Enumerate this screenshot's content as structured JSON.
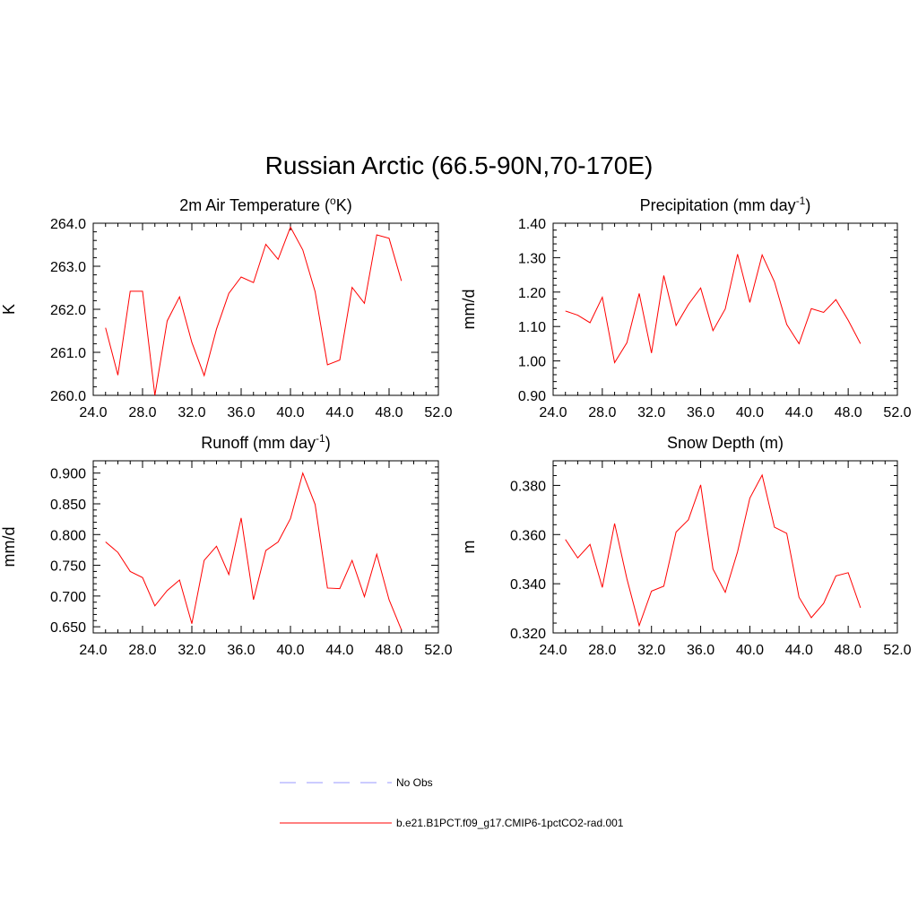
{
  "figure": {
    "title": "Russian Arctic (66.5-90N,70-170E)"
  },
  "colors": {
    "model": "#ff0000",
    "obs": "#9999ff"
  },
  "legend": [
    {
      "label": "No Obs",
      "style": "dashed",
      "color": "#9999ff"
    },
    {
      "label": "b.e21.B1PCT.f09_g17.CMIP6-1pctCO2-rad.001",
      "style": "solid",
      "color": "#ff0000"
    }
  ],
  "chart_data": [
    {
      "type": "line",
      "title": "2m Air Temperature (",
      "title_sup": "o",
      "title_suffix": "K)",
      "ylabel": "K",
      "xlabel": "",
      "xlim": [
        24,
        52
      ],
      "ylim": [
        260,
        264
      ],
      "xticks": [
        "24.0",
        "28.0",
        "32.0",
        "36.0",
        "40.0",
        "44.0",
        "48.0",
        "52.0"
      ],
      "yticks": [
        "260.0",
        "261.0",
        "262.0",
        "263.0",
        "264.0"
      ],
      "series": [
        {
          "x": [
            25,
            26,
            27,
            28,
            29,
            30,
            31,
            32,
            33,
            34,
            35,
            36,
            37,
            38,
            39,
            40,
            41,
            42,
            43,
            44,
            45,
            46,
            47,
            48,
            49
          ],
          "values": [
            261.57,
            260.47,
            262.42,
            262.42,
            260.0,
            261.73,
            262.29,
            261.23,
            260.46,
            261.54,
            262.37,
            262.75,
            262.62,
            263.51,
            263.16,
            263.91,
            263.38,
            262.41,
            260.71,
            260.82,
            262.51,
            262.14,
            263.73,
            263.65,
            262.66
          ]
        }
      ]
    },
    {
      "type": "line",
      "title": "Precipitation (mm day",
      "title_sup": "-1",
      "title_suffix": ")",
      "ylabel": "mm/d",
      "xlabel": "",
      "xlim": [
        24,
        52
      ],
      "ylim": [
        0.9,
        1.4
      ],
      "xticks": [
        "24.0",
        "28.0",
        "32.0",
        "36.0",
        "40.0",
        "44.0",
        "48.0",
        "52.0"
      ],
      "yticks": [
        "0.90",
        "1.00",
        "1.10",
        "1.20",
        "1.30",
        "1.40"
      ],
      "series": [
        {
          "x": [
            25,
            26,
            27,
            28,
            29,
            30,
            31,
            32,
            33,
            34,
            35,
            36,
            37,
            38,
            39,
            40,
            41,
            42,
            43,
            44,
            45,
            46,
            47,
            48,
            49
          ],
          "values": [
            1.145,
            1.133,
            1.111,
            1.185,
            0.995,
            1.053,
            1.196,
            1.023,
            1.248,
            1.103,
            1.164,
            1.212,
            1.088,
            1.151,
            1.31,
            1.17,
            1.308,
            1.23,
            1.106,
            1.05,
            1.152,
            1.141,
            1.178,
            1.118,
            1.05
          ]
        }
      ]
    },
    {
      "type": "line",
      "title": "Runoff (mm day",
      "title_sup": "-1",
      "title_suffix": ")",
      "ylabel": "mm/d",
      "xlabel": "",
      "xlim": [
        24,
        52
      ],
      "ylim": [
        0.64,
        0.92
      ],
      "xticks": [
        "24.0",
        "28.0",
        "32.0",
        "36.0",
        "40.0",
        "44.0",
        "48.0",
        "52.0"
      ],
      "yticks": [
        "0.650",
        "0.700",
        "0.750",
        "0.800",
        "0.850",
        "0.900"
      ],
      "series": [
        {
          "x": [
            25,
            26,
            27,
            28,
            29,
            30,
            31,
            32,
            33,
            34,
            35,
            36,
            37,
            38,
            39,
            40,
            41,
            42,
            43,
            44,
            45,
            46,
            47,
            48,
            49
          ],
          "values": [
            0.788,
            0.771,
            0.74,
            0.73,
            0.684,
            0.709,
            0.726,
            0.655,
            0.758,
            0.781,
            0.735,
            0.827,
            0.694,
            0.774,
            0.788,
            0.826,
            0.9,
            0.849,
            0.713,
            0.712,
            0.758,
            0.699,
            0.768,
            0.694,
            0.645
          ]
        }
      ]
    },
    {
      "type": "line",
      "title": "Snow Depth (m)",
      "title_sup": "",
      "title_suffix": "",
      "ylabel": "m",
      "xlabel": "",
      "xlim": [
        24,
        52
      ],
      "ylim": [
        0.32,
        0.39
      ],
      "xticks": [
        "24.0",
        "28.0",
        "32.0",
        "36.0",
        "40.0",
        "44.0",
        "48.0",
        "52.0"
      ],
      "yticks": [
        "0.320",
        "0.340",
        "0.360",
        "0.380"
      ],
      "series": [
        {
          "x": [
            25,
            26,
            27,
            28,
            29,
            30,
            31,
            32,
            33,
            34,
            35,
            36,
            37,
            38,
            39,
            40,
            41,
            42,
            43,
            44,
            45,
            46,
            47,
            48,
            49
          ],
          "values": [
            0.358,
            0.3505,
            0.356,
            0.3385,
            0.3645,
            0.342,
            0.323,
            0.337,
            0.339,
            0.361,
            0.366,
            0.3802,
            0.346,
            0.3365,
            0.353,
            0.3748,
            0.3842,
            0.363,
            0.3605,
            0.3345,
            0.3262,
            0.332,
            0.3432,
            0.3445,
            0.3302
          ]
        }
      ]
    }
  ]
}
